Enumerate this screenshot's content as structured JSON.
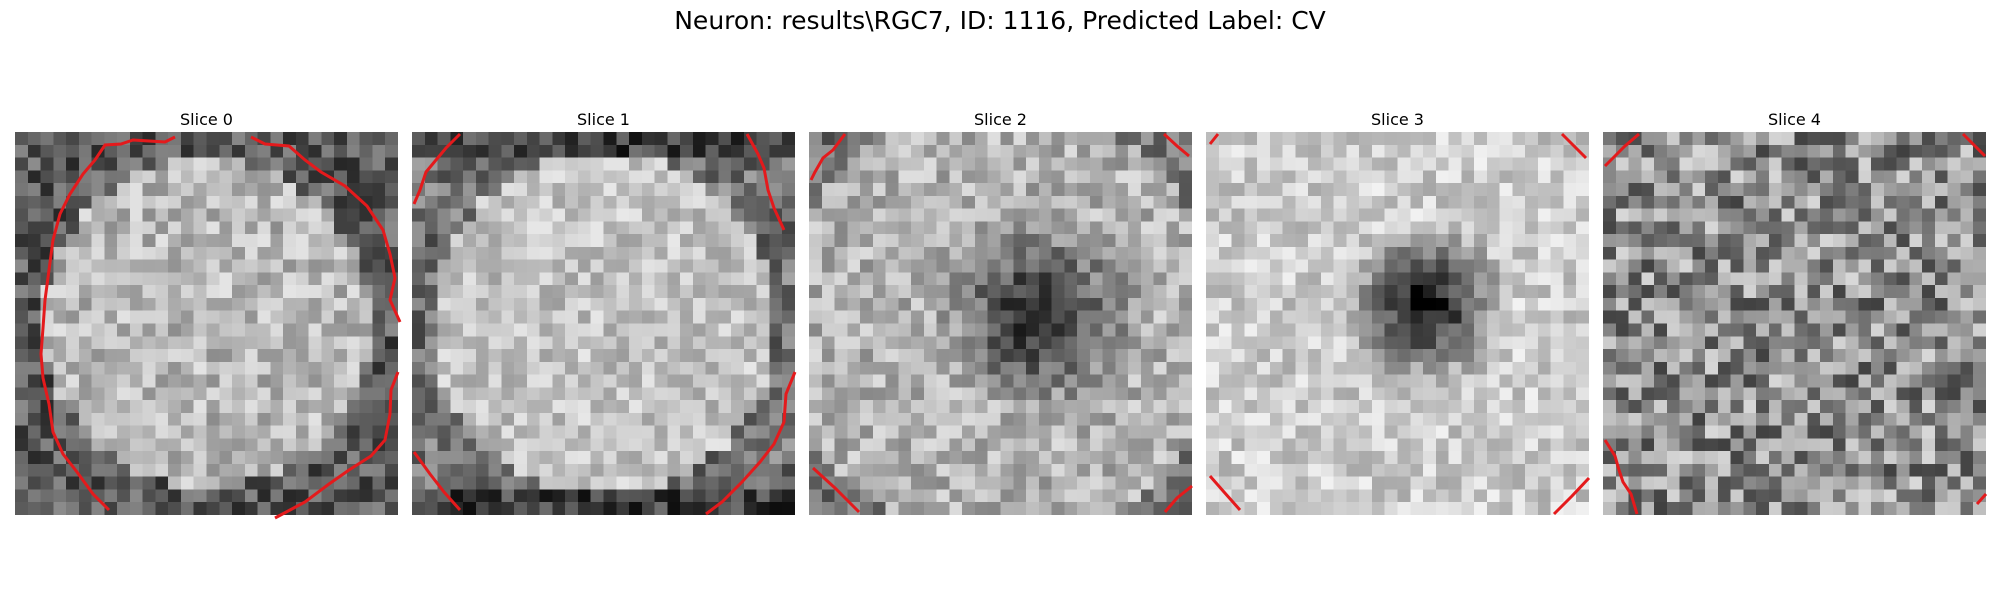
{
  "figure": {
    "title": "Neuron: results\\RGC7, ID: 1116, Predicted Label: CV"
  },
  "overlay_color": "#e41a1c",
  "grid_size": 30,
  "slices": [
    {
      "label": "Slice 0",
      "pattern": "ring"
    },
    {
      "label": "Slice 1",
      "pattern": "ring-faint"
    },
    {
      "label": "Slice 2",
      "pattern": "dark-center"
    },
    {
      "label": "Slice 3",
      "pattern": "dark-center-strong"
    },
    {
      "label": "Slice 4",
      "pattern": "noise"
    }
  ]
}
